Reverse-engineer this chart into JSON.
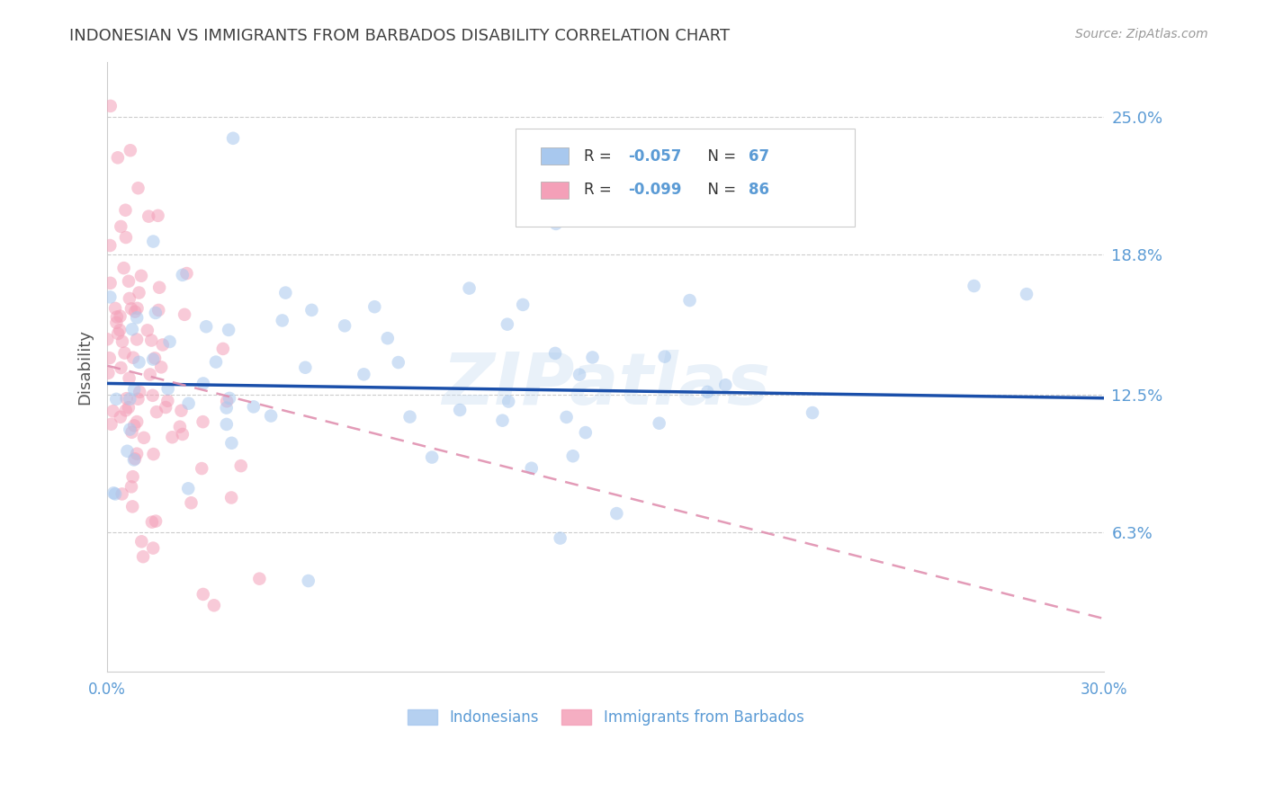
{
  "title": "INDONESIAN VS IMMIGRANTS FROM BARBADOS DISABILITY CORRELATION CHART",
  "source": "Source: ZipAtlas.com",
  "ylabel": "Disability",
  "ytick_labels": [
    "6.3%",
    "12.5%",
    "18.8%",
    "25.0%"
  ],
  "ytick_values": [
    0.063,
    0.125,
    0.188,
    0.25
  ],
  "xtick_values": [
    0.0,
    0.05,
    0.1,
    0.15,
    0.2,
    0.25,
    0.3
  ],
  "xmin": 0.0,
  "xmax": 0.3,
  "ymin": 0.0,
  "ymax": 0.275,
  "legend_label_blue": "Indonesians",
  "legend_label_pink": "Immigrants from Barbados",
  "blue_color": "#A8C8EE",
  "pink_color": "#F4A0B8",
  "blue_line_color": "#1A4FAA",
  "pink_line_color": "#E090B0",
  "axis_label_color": "#5B9BD5",
  "title_color": "#404040",
  "text_dark": "#333333",
  "blue_seed": 42,
  "pink_seed": 7,
  "marker_size": 110,
  "marker_alpha": 0.55,
  "blue_slope": -0.022,
  "blue_intercept": 0.13,
  "pink_slope": -0.38,
  "pink_intercept": 0.138
}
